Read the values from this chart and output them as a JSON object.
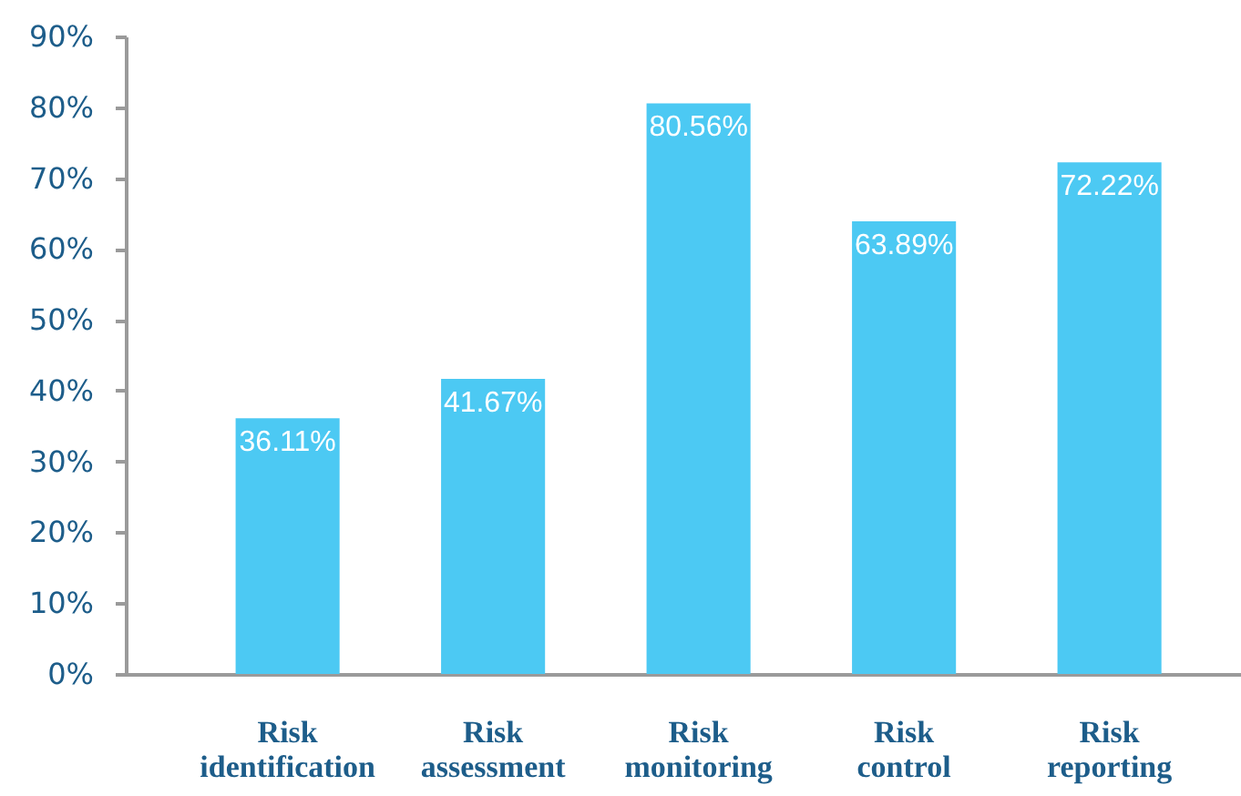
{
  "chart_data": {
    "type": "bar",
    "categories": [
      "Risk identification",
      "Risk assessment",
      "Risk monitoring",
      "Risk control",
      "Risk reporting"
    ],
    "values": [
      36.11,
      41.67,
      80.56,
      63.89,
      72.22
    ],
    "color": "#4cc9f3",
    "value_labels": [
      "36.11%",
      "41.67%",
      "80.56%",
      "63.89%",
      "72.22%"
    ],
    "ylim": [
      0,
      90
    ],
    "yticks": [
      {
        "value": 0,
        "label": "0%"
      },
      {
        "value": 10,
        "label": "10%"
      },
      {
        "value": 20,
        "label": "20%"
      },
      {
        "value": 30,
        "label": "30%"
      },
      {
        "value": 40,
        "label": "40%"
      },
      {
        "value": 50,
        "label": "50%"
      },
      {
        "value": 60,
        "label": "60%"
      },
      {
        "value": 70,
        "label": "70%"
      },
      {
        "value": 80,
        "label": "80%"
      },
      {
        "value": 90,
        "label": "90%"
      }
    ]
  }
}
